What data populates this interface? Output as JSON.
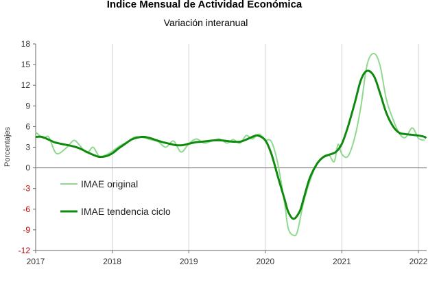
{
  "chart_data": {
    "type": "line",
    "title": "Índice Mensual de  Actividad Económica",
    "subtitle": "Variación interanual",
    "ylabel": "Porcentajes",
    "xlabel": "",
    "ylim": [
      -12,
      18
    ],
    "yticks": [
      -12,
      -9,
      -6,
      -3,
      0,
      3,
      6,
      9,
      12,
      15,
      18
    ],
    "xlim": [
      2017.0,
      2022.1
    ],
    "xticks": [
      "2017",
      "2018",
      "2019",
      "2020",
      "2021",
      "2022"
    ],
    "grid": "vertical",
    "legend": "bottom-left",
    "series": [
      {
        "name": "IMAE original",
        "color": "#8fd98f",
        "points": [
          [
            2017.0,
            5.2
          ],
          [
            2017.1,
            4.3
          ],
          [
            2017.17,
            4.5
          ],
          [
            2017.27,
            2.1
          ],
          [
            2017.4,
            2.9
          ],
          [
            2017.5,
            4.0
          ],
          [
            2017.58,
            3.2
          ],
          [
            2017.67,
            2.2
          ],
          [
            2017.75,
            3.0
          ],
          [
            2017.83,
            1.7
          ],
          [
            2017.92,
            1.9
          ],
          [
            2018.0,
            2.4
          ],
          [
            2018.1,
            3.2
          ],
          [
            2018.2,
            3.8
          ],
          [
            2018.3,
            4.5
          ],
          [
            2018.4,
            4.4
          ],
          [
            2018.5,
            4.1
          ],
          [
            2018.6,
            3.8
          ],
          [
            2018.7,
            3.0
          ],
          [
            2018.8,
            3.9
          ],
          [
            2018.9,
            2.3
          ],
          [
            2019.0,
            3.5
          ],
          [
            2019.1,
            4.2
          ],
          [
            2019.2,
            3.6
          ],
          [
            2019.3,
            3.9
          ],
          [
            2019.4,
            4.2
          ],
          [
            2019.5,
            3.6
          ],
          [
            2019.58,
            4.1
          ],
          [
            2019.67,
            3.6
          ],
          [
            2019.75,
            4.7
          ],
          [
            2019.83,
            4.2
          ],
          [
            2019.92,
            4.9
          ],
          [
            2020.0,
            4.1
          ],
          [
            2020.08,
            3.8
          ],
          [
            2020.16,
            0.8
          ],
          [
            2020.25,
            -5.0
          ],
          [
            2020.3,
            -8.8
          ],
          [
            2020.37,
            -9.8
          ],
          [
            2020.42,
            -9.2
          ],
          [
            2020.5,
            -5.0
          ],
          [
            2020.58,
            -2.0
          ],
          [
            2020.67,
            0.5
          ],
          [
            2020.75,
            1.6
          ],
          [
            2020.83,
            1.9
          ],
          [
            2020.9,
            0.9
          ],
          [
            2020.95,
            3.4
          ],
          [
            2021.0,
            2.0
          ],
          [
            2021.08,
            1.7
          ],
          [
            2021.17,
            4.5
          ],
          [
            2021.25,
            9.0
          ],
          [
            2021.33,
            15.0
          ],
          [
            2021.42,
            16.6
          ],
          [
            2021.5,
            14.8
          ],
          [
            2021.58,
            10.0
          ],
          [
            2021.67,
            7.0
          ],
          [
            2021.75,
            5.0
          ],
          [
            2021.83,
            4.4
          ],
          [
            2021.92,
            5.8
          ],
          [
            2022.0,
            4.3
          ],
          [
            2022.08,
            4.0
          ]
        ]
      },
      {
        "name": "IMAE tendencia ciclo",
        "color": "#0f8a0f",
        "points": [
          [
            2017.0,
            4.5
          ],
          [
            2017.08,
            4.5
          ],
          [
            2017.17,
            4.1
          ],
          [
            2017.25,
            3.7
          ],
          [
            2017.33,
            3.5
          ],
          [
            2017.42,
            3.3
          ],
          [
            2017.5,
            3.1
          ],
          [
            2017.58,
            2.8
          ],
          [
            2017.67,
            2.3
          ],
          [
            2017.75,
            1.9
          ],
          [
            2017.83,
            1.6
          ],
          [
            2017.92,
            1.7
          ],
          [
            2018.0,
            2.1
          ],
          [
            2018.08,
            2.8
          ],
          [
            2018.17,
            3.5
          ],
          [
            2018.25,
            4.1
          ],
          [
            2018.33,
            4.4
          ],
          [
            2018.42,
            4.5
          ],
          [
            2018.5,
            4.3
          ],
          [
            2018.58,
            4.0
          ],
          [
            2018.67,
            3.7
          ],
          [
            2018.75,
            3.5
          ],
          [
            2018.83,
            3.3
          ],
          [
            2018.92,
            3.3
          ],
          [
            2019.0,
            3.5
          ],
          [
            2019.08,
            3.7
          ],
          [
            2019.17,
            3.8
          ],
          [
            2019.25,
            3.9
          ],
          [
            2019.33,
            4.0
          ],
          [
            2019.42,
            4.0
          ],
          [
            2019.5,
            3.9
          ],
          [
            2019.58,
            3.8
          ],
          [
            2019.67,
            3.8
          ],
          [
            2019.75,
            4.1
          ],
          [
            2019.83,
            4.5
          ],
          [
            2019.9,
            4.7
          ],
          [
            2020.0,
            4.0
          ],
          [
            2020.08,
            2.0
          ],
          [
            2020.17,
            -1.5
          ],
          [
            2020.25,
            -4.5
          ],
          [
            2020.3,
            -6.4
          ],
          [
            2020.37,
            -7.4
          ],
          [
            2020.45,
            -6.3
          ],
          [
            2020.5,
            -4.5
          ],
          [
            2020.58,
            -1.5
          ],
          [
            2020.67,
            0.5
          ],
          [
            2020.75,
            1.5
          ],
          [
            2020.83,
            1.9
          ],
          [
            2020.92,
            2.3
          ],
          [
            2021.0,
            3.5
          ],
          [
            2021.08,
            6.0
          ],
          [
            2021.17,
            9.5
          ],
          [
            2021.25,
            12.8
          ],
          [
            2021.33,
            14.1
          ],
          [
            2021.42,
            13.3
          ],
          [
            2021.5,
            10.8
          ],
          [
            2021.58,
            8.0
          ],
          [
            2021.67,
            6.0
          ],
          [
            2021.75,
            5.1
          ],
          [
            2021.83,
            4.9
          ],
          [
            2021.92,
            4.8
          ],
          [
            2022.0,
            4.7
          ],
          [
            2022.08,
            4.5
          ],
          [
            2022.1,
            4.3
          ]
        ]
      }
    ]
  }
}
